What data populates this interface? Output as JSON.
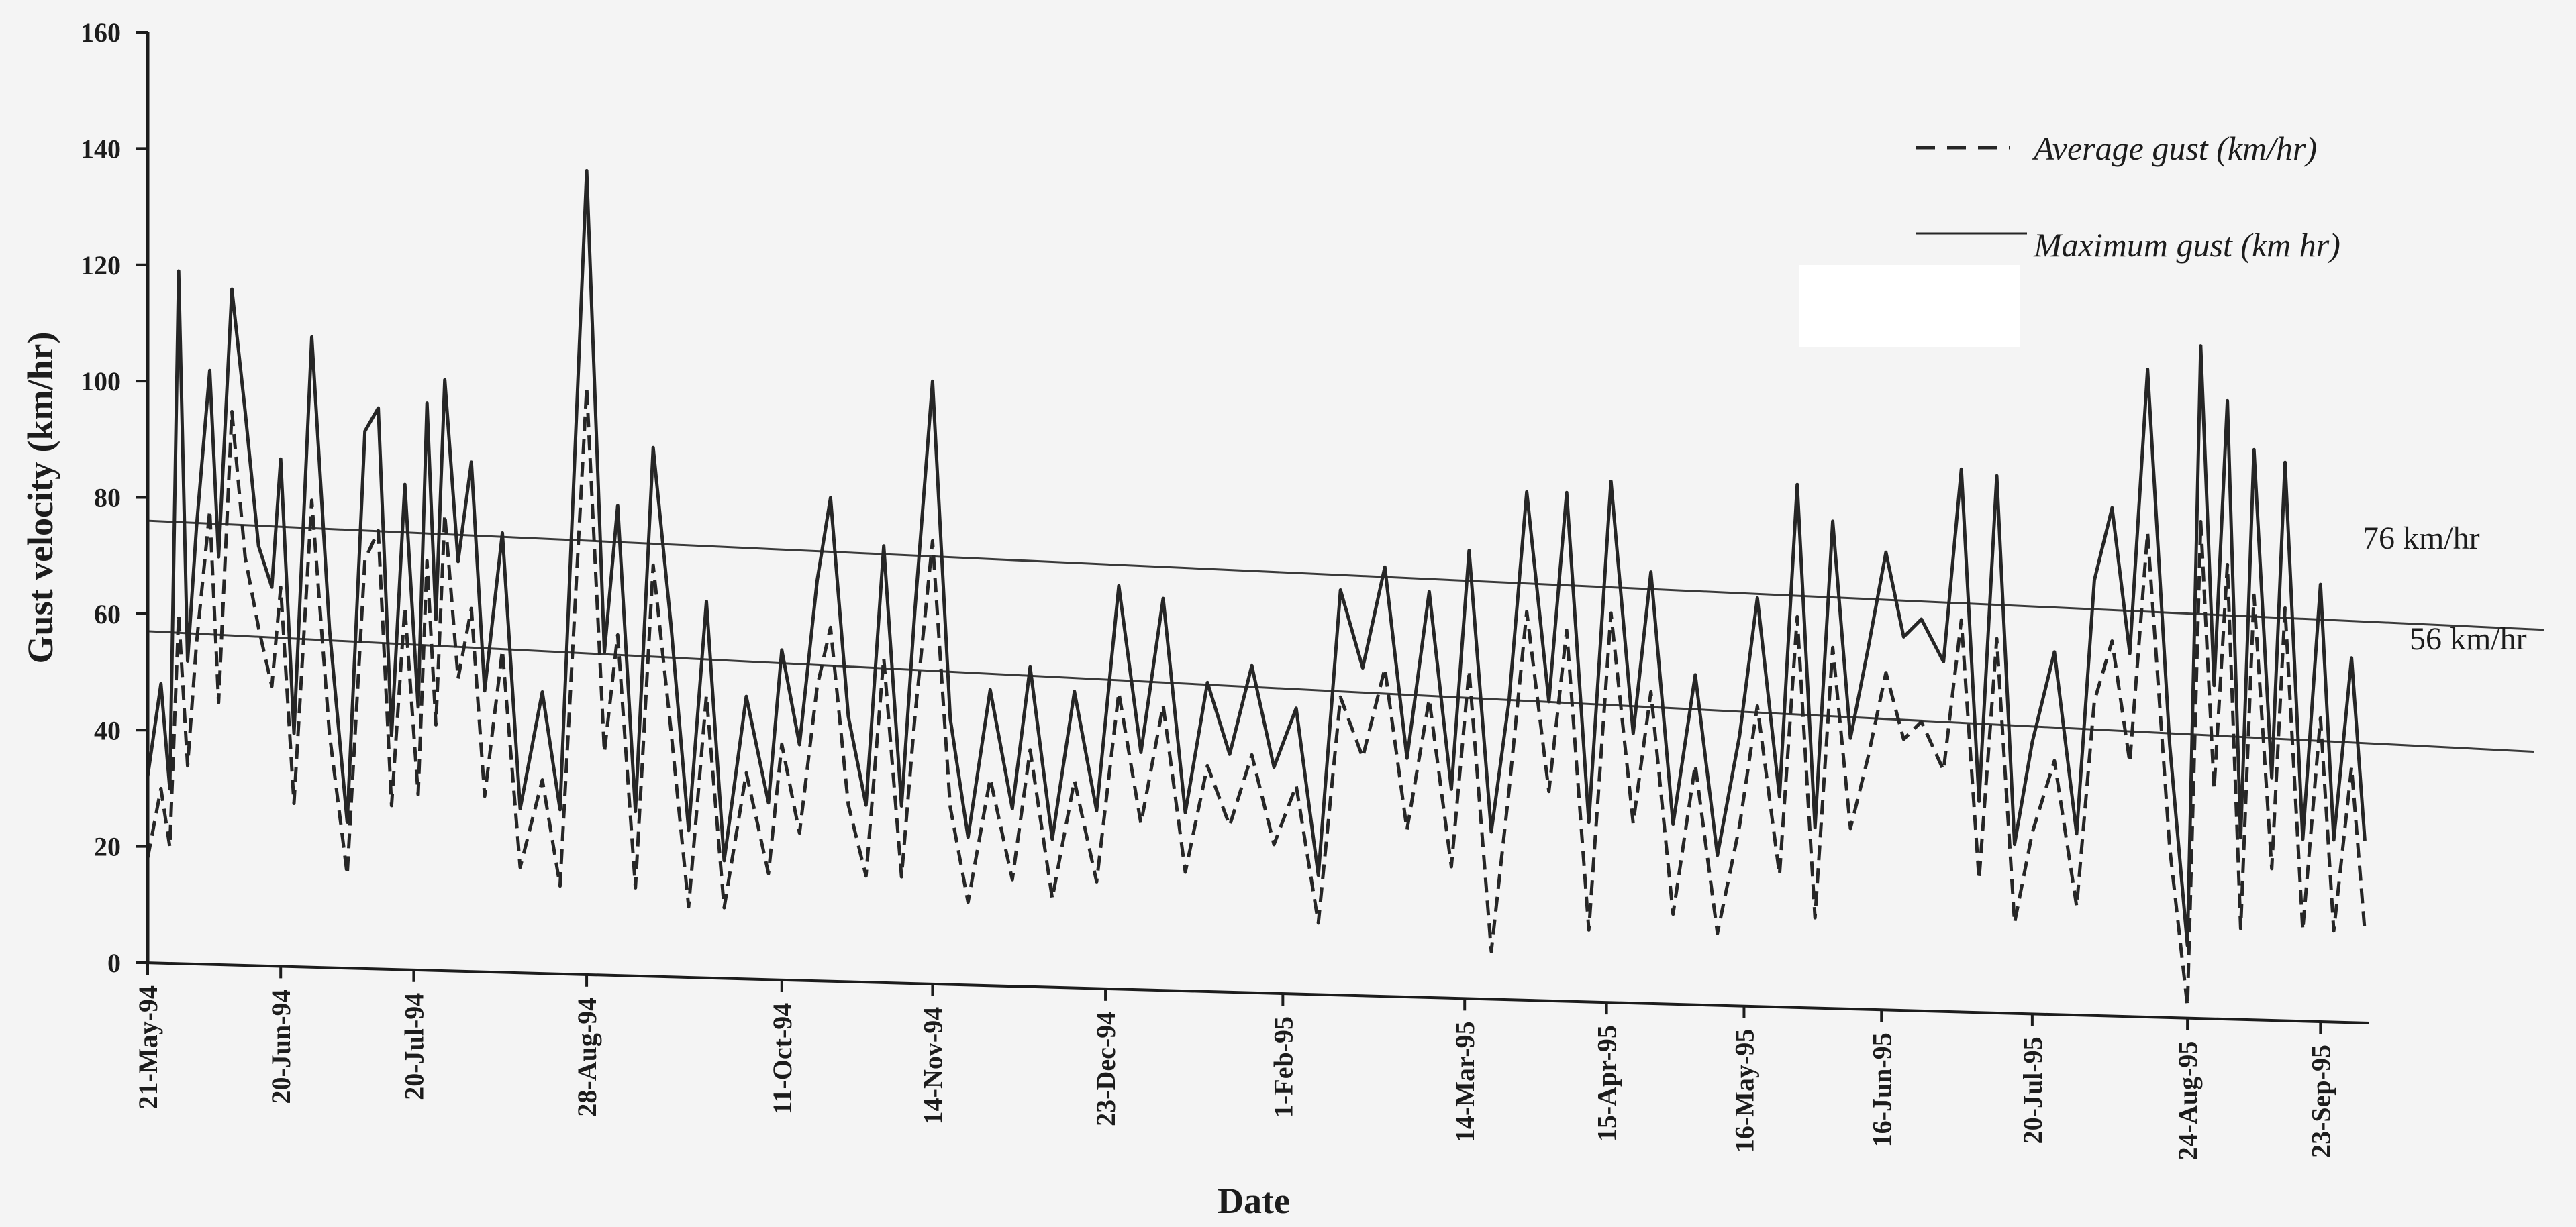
{
  "chart_data": {
    "type": "line",
    "title": "",
    "xlabel": "Date",
    "ylabel": "Gust velocity (km/hr)",
    "ylim": [
      0,
      160
    ],
    "yticks": [
      0,
      20,
      40,
      60,
      80,
      100,
      120,
      140,
      160
    ],
    "xlim": [
      "1994-05-21",
      "1995-10-04"
    ],
    "xticks": [
      {
        "date": "1994-05-21",
        "label": "21-May-94"
      },
      {
        "date": "1994-06-20",
        "label": "20-Jun-94"
      },
      {
        "date": "1994-07-20",
        "label": "20-Jul-94"
      },
      {
        "date": "1994-08-28",
        "label": "28-Aug-94"
      },
      {
        "date": "1994-10-11",
        "label": "11-Oct-94"
      },
      {
        "date": "1994-11-14",
        "label": "14-Nov-94"
      },
      {
        "date": "1994-12-23",
        "label": "23-Dec-94"
      },
      {
        "date": "1995-02-01",
        "label": "1-Feb-95"
      },
      {
        "date": "1995-03-14",
        "label": "14-Mar-95"
      },
      {
        "date": "1995-04-15",
        "label": "15-Apr-95"
      },
      {
        "date": "1995-05-16",
        "label": "16-May-95"
      },
      {
        "date": "1995-06-16",
        "label": "16-Jun-95"
      },
      {
        "date": "1995-07-20",
        "label": "20-Jul-95"
      },
      {
        "date": "1995-08-24",
        "label": "24-Aug-95"
      },
      {
        "date": "1995-09-23",
        "label": "23-Sep-95"
      }
    ],
    "grid": false,
    "legend": "top-right",
    "series": [
      {
        "name": "Maximum gust (km hr)",
        "style": "solid",
        "color": "#262626",
        "points": [
          [
            "1994-05-21",
            32
          ],
          [
            "1994-05-24",
            48
          ],
          [
            "1994-05-26",
            30
          ],
          [
            "1994-05-28",
            119
          ],
          [
            "1994-05-30",
            52
          ],
          [
            "1994-06-01",
            75
          ],
          [
            "1994-06-04",
            102
          ],
          [
            "1994-06-06",
            70
          ],
          [
            "1994-06-09",
            116
          ],
          [
            "1994-06-12",
            95
          ],
          [
            "1994-06-15",
            72
          ],
          [
            "1994-06-18",
            65
          ],
          [
            "1994-06-20",
            87
          ],
          [
            "1994-06-23",
            40
          ],
          [
            "1994-06-27",
            108
          ],
          [
            "1994-07-01",
            58
          ],
          [
            "1994-07-05",
            25
          ],
          [
            "1994-07-09",
            92
          ],
          [
            "1994-07-12",
            96
          ],
          [
            "1994-07-15",
            40
          ],
          [
            "1994-07-18",
            83
          ],
          [
            "1994-07-21",
            45
          ],
          [
            "1994-07-23",
            97
          ],
          [
            "1994-07-25",
            60
          ],
          [
            "1994-07-27",
            101
          ],
          [
            "1994-07-30",
            70
          ],
          [
            "1994-08-02",
            87
          ],
          [
            "1994-08-05",
            48
          ],
          [
            "1994-08-09",
            75
          ],
          [
            "1994-08-13",
            28
          ],
          [
            "1994-08-18",
            48
          ],
          [
            "1994-08-22",
            28
          ],
          [
            "1994-08-28",
            137
          ],
          [
            "1994-09-01",
            55
          ],
          [
            "1994-09-04",
            80
          ],
          [
            "1994-09-08",
            28
          ],
          [
            "1994-09-12",
            90
          ],
          [
            "1994-09-16",
            60
          ],
          [
            "1994-09-20",
            25
          ],
          [
            "1994-09-24",
            64
          ],
          [
            "1994-09-28",
            20
          ],
          [
            "1994-10-03",
            48
          ],
          [
            "1994-10-08",
            30
          ],
          [
            "1994-10-11",
            56
          ],
          [
            "1994-10-15",
            40
          ],
          [
            "1994-10-19",
            68
          ],
          [
            "1994-10-22",
            82
          ],
          [
            "1994-10-26",
            45
          ],
          [
            "1994-10-30",
            30
          ],
          [
            "1994-11-03",
            74
          ],
          [
            "1994-11-07",
            30
          ],
          [
            "1994-11-10",
            63
          ],
          [
            "1994-11-14",
            102
          ],
          [
            "1994-11-18",
            45
          ],
          [
            "1994-11-22",
            25
          ],
          [
            "1994-11-27",
            50
          ],
          [
            "1994-12-02",
            30
          ],
          [
            "1994-12-06",
            54
          ],
          [
            "1994-12-11",
            25
          ],
          [
            "1994-12-16",
            50
          ],
          [
            "1994-12-21",
            30
          ],
          [
            "1994-12-26",
            68
          ],
          [
            "1994-12-31",
            40
          ],
          [
            "1995-01-05",
            66
          ],
          [
            "1995-01-10",
            30
          ],
          [
            "1995-01-15",
            52
          ],
          [
            "1995-01-20",
            40
          ],
          [
            "1995-01-25",
            55
          ],
          [
            "1995-01-30",
            38
          ],
          [
            "1995-02-04",
            48
          ],
          [
            "1995-02-09",
            20
          ],
          [
            "1995-02-14",
            68
          ],
          [
            "1995-02-19",
            55
          ],
          [
            "1995-02-24",
            72
          ],
          [
            "1995-03-01",
            40
          ],
          [
            "1995-03-06",
            68
          ],
          [
            "1995-03-11",
            35
          ],
          [
            "1995-03-15",
            75
          ],
          [
            "1995-03-20",
            28
          ],
          [
            "1995-03-24",
            50
          ],
          [
            "1995-03-28",
            85
          ],
          [
            "1995-04-02",
            50
          ],
          [
            "1995-04-06",
            85
          ],
          [
            "1995-04-11",
            30
          ],
          [
            "1995-04-16",
            87
          ],
          [
            "1995-04-21",
            45
          ],
          [
            "1995-04-25",
            72
          ],
          [
            "1995-04-30",
            30
          ],
          [
            "1995-05-05",
            55
          ],
          [
            "1995-05-10",
            25
          ],
          [
            "1995-05-15",
            45
          ],
          [
            "1995-05-19",
            68
          ],
          [
            "1995-05-24",
            35
          ],
          [
            "1995-05-28",
            87
          ],
          [
            "1995-06-01",
            30
          ],
          [
            "1995-06-05",
            81
          ],
          [
            "1995-06-09",
            45
          ],
          [
            "1995-06-13",
            60
          ],
          [
            "1995-06-17",
            76
          ],
          [
            "1995-06-21",
            62
          ],
          [
            "1995-06-25",
            65
          ],
          [
            "1995-06-30",
            58
          ],
          [
            "1995-07-04",
            90
          ],
          [
            "1995-07-08",
            35
          ],
          [
            "1995-07-12",
            89
          ],
          [
            "1995-07-16",
            28
          ],
          [
            "1995-07-20",
            45
          ],
          [
            "1995-07-25",
            60
          ],
          [
            "1995-07-30",
            30
          ],
          [
            "1995-08-03",
            72
          ],
          [
            "1995-08-07",
            84
          ],
          [
            "1995-08-11",
            60
          ],
          [
            "1995-08-15",
            107
          ],
          [
            "1995-08-20",
            45
          ],
          [
            "1995-08-24",
            12
          ],
          [
            "1995-08-27",
            111
          ],
          [
            "1995-08-30",
            55
          ],
          [
            "1995-09-02",
            102
          ],
          [
            "1995-09-05",
            30
          ],
          [
            "1995-09-08",
            94
          ],
          [
            "1995-09-12",
            40
          ],
          [
            "1995-09-15",
            92
          ],
          [
            "1995-09-19",
            30
          ],
          [
            "1995-09-23",
            72
          ],
          [
            "1995-09-26",
            30
          ],
          [
            "1995-09-30",
            60
          ],
          [
            "1995-10-03",
            30
          ]
        ]
      },
      {
        "name": "Average gust (km/hr)",
        "style": "dashed",
        "color": "#262626",
        "points": [
          [
            "1994-05-21",
            18
          ],
          [
            "1994-05-24",
            30
          ],
          [
            "1994-05-26",
            20
          ],
          [
            "1994-05-28",
            60
          ],
          [
            "1994-05-30",
            34
          ],
          [
            "1994-06-01",
            55
          ],
          [
            "1994-06-04",
            78
          ],
          [
            "1994-06-06",
            45
          ],
          [
            "1994-06-09",
            95
          ],
          [
            "1994-06-12",
            70
          ],
          [
            "1994-06-15",
            58
          ],
          [
            "1994-06-18",
            48
          ],
          [
            "1994-06-20",
            65
          ],
          [
            "1994-06-23",
            28
          ],
          [
            "1994-06-27",
            80
          ],
          [
            "1994-07-01",
            40
          ],
          [
            "1994-07-05",
            16
          ],
          [
            "1994-07-09",
            70
          ],
          [
            "1994-07-12",
            75
          ],
          [
            "1994-07-15",
            28
          ],
          [
            "1994-07-18",
            62
          ],
          [
            "1994-07-21",
            30
          ],
          [
            "1994-07-23",
            70
          ],
          [
            "1994-07-25",
            42
          ],
          [
            "1994-07-27",
            78
          ],
          [
            "1994-07-30",
            50
          ],
          [
            "1994-08-02",
            62
          ],
          [
            "1994-08-05",
            30
          ],
          [
            "1994-08-09",
            55
          ],
          [
            "1994-08-13",
            18
          ],
          [
            "1994-08-18",
            33
          ],
          [
            "1994-08-22",
            15
          ],
          [
            "1994-08-28",
            100
          ],
          [
            "1994-09-01",
            38
          ],
          [
            "1994-09-04",
            58
          ],
          [
            "1994-09-08",
            15
          ],
          [
            "1994-09-12",
            70
          ],
          [
            "1994-09-16",
            42
          ],
          [
            "1994-09-20",
            12
          ],
          [
            "1994-09-24",
            48
          ],
          [
            "1994-09-28",
            12
          ],
          [
            "1994-10-03",
            35
          ],
          [
            "1994-10-08",
            18
          ],
          [
            "1994-10-11",
            40
          ],
          [
            "1994-10-15",
            25
          ],
          [
            "1994-10-19",
            50
          ],
          [
            "1994-10-22",
            60
          ],
          [
            "1994-10-26",
            30
          ],
          [
            "1994-10-30",
            18
          ],
          [
            "1994-11-03",
            55
          ],
          [
            "1994-11-07",
            18
          ],
          [
            "1994-11-10",
            45
          ],
          [
            "1994-11-14",
            75
          ],
          [
            "1994-11-18",
            30
          ],
          [
            "1994-11-22",
            14
          ],
          [
            "1994-11-27",
            35
          ],
          [
            "1994-12-02",
            18
          ],
          [
            "1994-12-06",
            40
          ],
          [
            "1994-12-11",
            15
          ],
          [
            "1994-12-16",
            35
          ],
          [
            "1994-12-21",
            18
          ],
          [
            "1994-12-26",
            50
          ],
          [
            "1994-12-31",
            28
          ],
          [
            "1995-01-05",
            48
          ],
          [
            "1995-01-10",
            20
          ],
          [
            "1995-01-15",
            38
          ],
          [
            "1995-01-20",
            28
          ],
          [
            "1995-01-25",
            40
          ],
          [
            "1995-01-30",
            25
          ],
          [
            "1995-02-04",
            35
          ],
          [
            "1995-02-09",
            12
          ],
          [
            "1995-02-14",
            50
          ],
          [
            "1995-02-19",
            40
          ],
          [
            "1995-02-24",
            55
          ],
          [
            "1995-03-01",
            28
          ],
          [
            "1995-03-06",
            50
          ],
          [
            "1995-03-11",
            22
          ],
          [
            "1995-03-15",
            55
          ],
          [
            "1995-03-20",
            8
          ],
          [
            "1995-03-24",
            35
          ],
          [
            "1995-03-28",
            65
          ],
          [
            "1995-04-02",
            35
          ],
          [
            "1995-04-06",
            62
          ],
          [
            "1995-04-11",
            12
          ],
          [
            "1995-04-16",
            65
          ],
          [
            "1995-04-21",
            30
          ],
          [
            "1995-04-25",
            52
          ],
          [
            "1995-04-30",
            15
          ],
          [
            "1995-05-05",
            40
          ],
          [
            "1995-05-10",
            12
          ],
          [
            "1995-05-15",
            30
          ],
          [
            "1995-05-19",
            50
          ],
          [
            "1995-05-24",
            22
          ],
          [
            "1995-05-28",
            65
          ],
          [
            "1995-06-01",
            15
          ],
          [
            "1995-06-05",
            60
          ],
          [
            "1995-06-09",
            30
          ],
          [
            "1995-06-13",
            42
          ],
          [
            "1995-06-17",
            56
          ],
          [
            "1995-06-21",
            45
          ],
          [
            "1995-06-25",
            48
          ],
          [
            "1995-06-30",
            40
          ],
          [
            "1995-07-04",
            65
          ],
          [
            "1995-07-08",
            22
          ],
          [
            "1995-07-12",
            62
          ],
          [
            "1995-07-16",
            15
          ],
          [
            "1995-07-20",
            30
          ],
          [
            "1995-07-25",
            42
          ],
          [
            "1995-07-30",
            18
          ],
          [
            "1995-08-03",
            52
          ],
          [
            "1995-08-07",
            62
          ],
          [
            "1995-08-11",
            42
          ],
          [
            "1995-08-15",
            80
          ],
          [
            "1995-08-20",
            28
          ],
          [
            "1995-08-24",
            2
          ],
          [
            "1995-08-27",
            82
          ],
          [
            "1995-08-30",
            38
          ],
          [
            "1995-09-02",
            75
          ],
          [
            "1995-09-05",
            15
          ],
          [
            "1995-09-08",
            70
          ],
          [
            "1995-09-12",
            25
          ],
          [
            "1995-09-15",
            68
          ],
          [
            "1995-09-19",
            15
          ],
          [
            "1995-09-23",
            50
          ],
          [
            "1995-09-26",
            15
          ],
          [
            "1995-09-30",
            42
          ],
          [
            "1995-10-03",
            15
          ]
        ]
      }
    ],
    "reference_lines": [
      {
        "label": "76 km/hr",
        "from": [
          "1994-05-21",
          76
        ],
        "to": [
          "1995-10-04",
          66
        ]
      },
      {
        "label": "56 km/hr",
        "from": [
          "1994-05-21",
          57
        ],
        "to": [
          "1995-10-04",
          46
        ]
      }
    ]
  }
}
